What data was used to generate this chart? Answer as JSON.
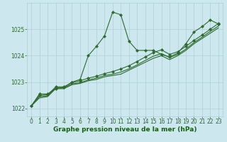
{
  "bg_color": "#cce8ee",
  "line_color": "#2d6a2d",
  "grid_color": "#b0cdd4",
  "xlabel": "Graphe pression niveau de la mer (hPa)",
  "xlabel_color": "#1a5c1a",
  "xlim": [
    -0.5,
    23.5
  ],
  "ylim": [
    1021.7,
    1026.0
  ],
  "yticks": [
    1022,
    1023,
    1024,
    1025
  ],
  "xticks": [
    0,
    1,
    2,
    3,
    4,
    5,
    6,
    7,
    8,
    9,
    10,
    11,
    12,
    13,
    14,
    15,
    16,
    17,
    18,
    19,
    20,
    21,
    22,
    23
  ],
  "series": [
    {
      "x": [
        0,
        1,
        2,
        3,
        4,
        5,
        6,
        7,
        8,
        9,
        10,
        11,
        12,
        13,
        14,
        15,
        16,
        17,
        18,
        19,
        20,
        21,
        22,
        23
      ],
      "y": [
        1022.1,
        1022.55,
        1022.55,
        1022.75,
        1022.8,
        1023.0,
        1023.1,
        1024.0,
        1024.35,
        1024.75,
        1025.65,
        1025.55,
        1024.55,
        1024.2,
        1024.2,
        1024.2,
        1024.05,
        1023.95,
        1024.1,
        1024.45,
        1024.9,
        1025.1,
        1025.35,
        1025.2
      ],
      "marker": true
    },
    {
      "x": [
        0,
        1,
        2,
        3,
        4,
        5,
        6,
        7,
        8,
        9,
        10,
        11,
        12,
        13,
        14,
        15,
        16,
        17,
        18,
        19,
        20,
        21,
        22,
        23
      ],
      "y": [
        1022.1,
        1022.4,
        1022.45,
        1022.75,
        1022.75,
        1022.9,
        1022.95,
        1023.05,
        1023.1,
        1023.2,
        1023.25,
        1023.3,
        1023.45,
        1023.6,
        1023.75,
        1023.9,
        1024.0,
        1023.85,
        1024.0,
        1024.2,
        1024.45,
        1024.65,
        1024.85,
        1025.05
      ],
      "marker": false
    },
    {
      "x": [
        0,
        1,
        2,
        3,
        4,
        5,
        6,
        7,
        8,
        9,
        10,
        11,
        12,
        13,
        14,
        15,
        16,
        17,
        18,
        19,
        20,
        21,
        22,
        23
      ],
      "y": [
        1022.1,
        1022.45,
        1022.48,
        1022.78,
        1022.78,
        1022.93,
        1022.98,
        1023.08,
        1023.15,
        1023.25,
        1023.3,
        1023.38,
        1023.5,
        1023.65,
        1023.82,
        1023.98,
        1024.08,
        1023.93,
        1024.05,
        1024.25,
        1024.5,
        1024.7,
        1024.92,
        1025.12
      ],
      "marker": false
    },
    {
      "x": [
        0,
        1,
        2,
        3,
        4,
        5,
        6,
        7,
        8,
        9,
        10,
        11,
        12,
        13,
        14,
        15,
        16,
        17,
        18,
        19,
        20,
        21,
        22,
        23
      ],
      "y": [
        1022.1,
        1022.5,
        1022.52,
        1022.82,
        1022.82,
        1022.98,
        1023.05,
        1023.15,
        1023.22,
        1023.32,
        1023.4,
        1023.5,
        1023.62,
        1023.78,
        1023.95,
        1024.12,
        1024.22,
        1024.05,
        1024.15,
        1024.35,
        1024.58,
        1024.78,
        1025.0,
        1025.22
      ],
      "marker": true
    }
  ],
  "tick_fontsize": 5.5,
  "label_fontsize": 6.5
}
